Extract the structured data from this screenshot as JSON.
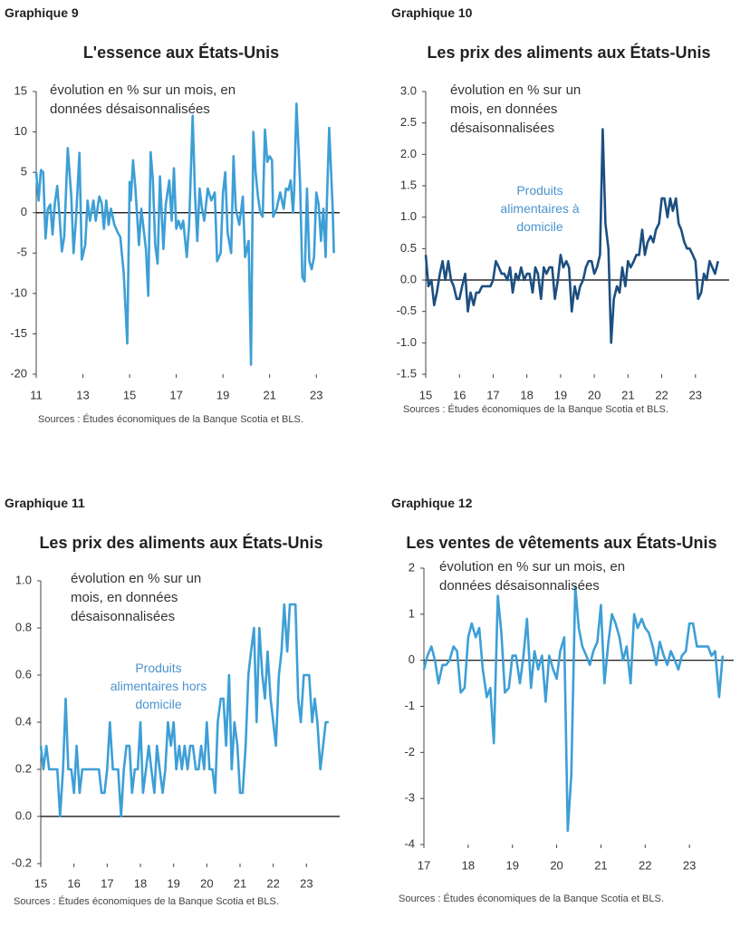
{
  "chart_data": [
    {
      "type": "line",
      "label": "Graphique 9",
      "title": "L'essence aux États-Unis",
      "annotation": "évolution en % sur un mois, en données désaisonnalisées",
      "source": "Sources : Études économiques de la Banque Scotia et BLS.",
      "x": [
        2011.0,
        2011.1,
        2011.2,
        2011.3,
        2011.4,
        2011.5,
        2011.6,
        2011.7,
        2011.8,
        2011.9,
        2012.0,
        2012.1,
        2012.2,
        2012.35,
        2012.5,
        2012.6,
        2012.7,
        2012.85,
        2012.95,
        2013.1,
        2013.2,
        2013.3,
        2013.45,
        2013.55,
        2013.7,
        2013.8,
        2013.9,
        2014.0,
        2014.1,
        2014.2,
        2014.35,
        2014.5,
        2014.6,
        2014.75,
        2014.9,
        2015.0,
        2015.05,
        2015.15,
        2015.25,
        2015.4,
        2015.5,
        2015.6,
        2015.7,
        2015.8,
        2015.9,
        2016.0,
        2016.1,
        2016.2,
        2016.3,
        2016.45,
        2016.55,
        2016.7,
        2016.8,
        2016.9,
        2017.0,
        2017.1,
        2017.2,
        2017.3,
        2017.45,
        2017.55,
        2017.7,
        2017.8,
        2017.9,
        2018.0,
        2018.1,
        2018.2,
        2018.35,
        2018.5,
        2018.65,
        2018.75,
        2018.9,
        2019.0,
        2019.1,
        2019.2,
        2019.35,
        2019.45,
        2019.55,
        2019.7,
        2019.85,
        2019.95,
        2020.1,
        2020.2,
        2020.3,
        2020.4,
        2020.5,
        2020.6,
        2020.7,
        2020.8,
        2020.9,
        2021.0,
        2021.1,
        2021.15,
        2021.3,
        2021.45,
        2021.6,
        2021.7,
        2021.8,
        2021.9,
        2022.0,
        2022.05,
        2022.15,
        2022.3,
        2022.4,
        2022.5,
        2022.6,
        2022.7,
        2022.8,
        2022.9,
        2023.0,
        2023.1,
        2023.2,
        2023.3,
        2023.4,
        2023.45,
        2023.55,
        2023.7,
        2023.75
      ],
      "series": [
        {
          "color": "#3d9fd6",
          "values": [
            5,
            1.5,
            5.3,
            5,
            -3.2,
            0.5,
            1,
            -2.7,
            1.2,
            3.3,
            -0.5,
            -4.8,
            -3,
            8,
            2,
            -5,
            -1,
            7.4,
            -5.8,
            -4,
            1.5,
            -1,
            1.5,
            -1,
            2,
            1.2,
            -2,
            1.5,
            -1.5,
            0.5,
            -1.5,
            -2.5,
            -3,
            -7.5,
            -16.2,
            3.8,
            1.5,
            6.5,
            3,
            -4,
            0.5,
            -2,
            -4.5,
            -10.3,
            7.5,
            4,
            -4,
            -6.3,
            4.5,
            -4.5,
            1,
            4,
            -1,
            5.5,
            -2,
            -1,
            -2,
            -1,
            -5.5,
            -1.5,
            12,
            2.5,
            -3.5,
            3,
            0.5,
            -1,
            3,
            1.5,
            2.5,
            -6,
            -5,
            2.5,
            5,
            -2.5,
            -5,
            7,
            0.5,
            -1.5,
            2,
            -5.5,
            -3.5,
            -18.8,
            10,
            5,
            2,
            0,
            -0.5,
            10.3,
            6.3,
            7,
            6.5,
            -0.5,
            0.5,
            2.5,
            0.5,
            3,
            2.8,
            4,
            0,
            2.5,
            13.5,
            4,
            -8,
            -8.5,
            3,
            -6,
            -7,
            -5.5,
            2.5,
            1,
            -3.5,
            0.5,
            -5.5,
            1,
            10.5,
            0.5,
            -5
          ]
        }
      ],
      "xlim": [
        2011,
        2024
      ],
      "xticks": [
        {
          "value": 2011,
          "label": "11"
        },
        {
          "value": 2013,
          "label": "13"
        },
        {
          "value": 2015,
          "label": "15"
        },
        {
          "value": 2017,
          "label": "17"
        },
        {
          "value": 2019,
          "label": "19"
        },
        {
          "value": 2021,
          "label": "21"
        },
        {
          "value": 2023,
          "label": "23"
        }
      ],
      "ylim": [
        -20,
        15
      ],
      "yticks": [
        -20,
        -15,
        -10,
        -5,
        0,
        5,
        10,
        15
      ],
      "grid": false
    },
    {
      "type": "line",
      "label": "Graphique 10",
      "title": "Les prix des aliments aux États-Unis",
      "annotation": "évolution en % sur un mois, en données désaisonnalisées",
      "source": "Sources : Études économiques de la Banque Scotia et BLS.",
      "x": [
        2015.0,
        2015.08,
        2015.17,
        2015.25,
        2015.33,
        2015.42,
        2015.5,
        2015.58,
        2015.67,
        2015.75,
        2015.83,
        2015.92,
        2016.0,
        2016.08,
        2016.17,
        2016.25,
        2016.33,
        2016.42,
        2016.5,
        2016.58,
        2016.67,
        2016.75,
        2016.83,
        2016.92,
        2017.0,
        2017.08,
        2017.17,
        2017.25,
        2017.33,
        2017.42,
        2017.5,
        2017.58,
        2017.67,
        2017.75,
        2017.83,
        2017.92,
        2018.0,
        2018.08,
        2018.17,
        2018.25,
        2018.33,
        2018.42,
        2018.5,
        2018.58,
        2018.67,
        2018.75,
        2018.83,
        2018.92,
        2019.0,
        2019.08,
        2019.17,
        2019.25,
        2019.33,
        2019.42,
        2019.5,
        2019.58,
        2019.67,
        2019.75,
        2019.83,
        2019.92,
        2020.0,
        2020.08,
        2020.17,
        2020.25,
        2020.33,
        2020.42,
        2020.5,
        2020.58,
        2020.67,
        2020.75,
        2020.83,
        2020.92,
        2021.0,
        2021.08,
        2021.17,
        2021.25,
        2021.33,
        2021.42,
        2021.5,
        2021.58,
        2021.67,
        2021.75,
        2021.83,
        2021.92,
        2022.0,
        2022.08,
        2022.17,
        2022.25,
        2022.33,
        2022.42,
        2022.5,
        2022.58,
        2022.67,
        2022.75,
        2022.83,
        2022.92,
        2023.0,
        2023.08,
        2023.17,
        2023.25,
        2023.33,
        2023.42,
        2023.5,
        2023.58,
        2023.67
      ],
      "series": [
        {
          "name": "Produits alimentaires à domicile",
          "color": "#1c4f80",
          "values": [
            0.4,
            -0.1,
            0,
            -0.4,
            -0.2,
            0.1,
            0.3,
            0,
            0.3,
            0,
            -0.1,
            -0.3,
            -0.3,
            -0.1,
            0.1,
            -0.5,
            -0.2,
            -0.4,
            -0.2,
            -0.2,
            -0.1,
            -0.1,
            -0.1,
            -0.1,
            0,
            0.3,
            0.2,
            0.1,
            0.1,
            0,
            0.2,
            -0.2,
            0.1,
            0,
            0.2,
            0,
            0.1,
            0.1,
            -0.2,
            0.2,
            0.1,
            -0.3,
            0.2,
            0.1,
            0.2,
            0.2,
            -0.3,
            0,
            0.4,
            0.2,
            0.3,
            0.2,
            -0.5,
            -0.1,
            -0.3,
            -0.1,
            0,
            0.2,
            0.3,
            0.3,
            0.1,
            0.2,
            0.4,
            2.4,
            0.9,
            0.5,
            -1,
            -0.3,
            -0.1,
            -0.2,
            0.2,
            -0.1,
            0.3,
            0.2,
            0.3,
            0.4,
            0.4,
            0.8,
            0.4,
            0.6,
            0.7,
            0.6,
            0.8,
            0.9,
            1.3,
            1.3,
            1,
            1.3,
            1.1,
            1.3,
            0.9,
            0.8,
            0.6,
            0.5,
            0.5,
            0.4,
            0.3,
            -0.3,
            -0.2,
            0.1,
            0,
            0.3,
            0.2,
            0.1,
            0.3
          ]
        }
      ],
      "xlim": [
        2015,
        2024
      ],
      "xticks": [
        {
          "value": 2015,
          "label": "15"
        },
        {
          "value": 2016,
          "label": "16"
        },
        {
          "value": 2017,
          "label": "17"
        },
        {
          "value": 2018,
          "label": "18"
        },
        {
          "value": 2019,
          "label": "19"
        },
        {
          "value": 2020,
          "label": "20"
        },
        {
          "value": 2021,
          "label": "21"
        },
        {
          "value": 2022,
          "label": "22"
        },
        {
          "value": 2023,
          "label": "23"
        }
      ],
      "ylim": [
        -1.5,
        3
      ],
      "yticks": [
        -1.5,
        {
          "value": -1,
          "label": "-1.0"
        },
        -0.5,
        {
          "value": 0,
          "label": "0.0"
        },
        0.5,
        {
          "value": 1,
          "label": "1.0"
        },
        1.5,
        {
          "value": 2,
          "label": "2.0"
        },
        2.5,
        {
          "value": 3,
          "label": "3.0"
        }
      ],
      "grid": false
    },
    {
      "type": "line",
      "label": "Graphique 11",
      "title": "Les prix des aliments aux États-Unis",
      "annotation": "évolution en % sur un mois, en données désaisonnalisées",
      "source": "Sources : Études économiques de la Banque Scotia et BLS.",
      "x": [
        2015.0,
        2015.08,
        2015.17,
        2015.25,
        2015.33,
        2015.42,
        2015.5,
        2015.58,
        2015.67,
        2015.75,
        2015.83,
        2015.92,
        2016.0,
        2016.08,
        2016.17,
        2016.25,
        2016.33,
        2016.42,
        2016.5,
        2016.58,
        2016.67,
        2016.75,
        2016.83,
        2016.92,
        2017.0,
        2017.08,
        2017.17,
        2017.25,
        2017.33,
        2017.42,
        2017.5,
        2017.58,
        2017.67,
        2017.75,
        2017.83,
        2017.92,
        2018.0,
        2018.08,
        2018.17,
        2018.25,
        2018.33,
        2018.42,
        2018.5,
        2018.58,
        2018.67,
        2018.75,
        2018.83,
        2018.92,
        2019.0,
        2019.08,
        2019.17,
        2019.25,
        2019.33,
        2019.42,
        2019.5,
        2019.58,
        2019.67,
        2019.75,
        2019.83,
        2019.92,
        2020.0,
        2020.08,
        2020.17,
        2020.25,
        2020.33,
        2020.42,
        2020.5,
        2020.58,
        2020.67,
        2020.75,
        2020.83,
        2020.92,
        2021.0,
        2021.08,
        2021.17,
        2021.25,
        2021.33,
        2021.42,
        2021.5,
        2021.58,
        2021.67,
        2021.75,
        2021.83,
        2021.92,
        2022.0,
        2022.08,
        2022.17,
        2022.25,
        2022.33,
        2022.42,
        2022.5,
        2022.58,
        2022.67,
        2022.75,
        2022.83,
        2022.92,
        2023.0,
        2023.08,
        2023.17,
        2023.25,
        2023.33,
        2023.42,
        2023.5,
        2023.58,
        2023.67
      ],
      "series": [
        {
          "name": "Produits alimentaires hors domicile",
          "color": "#3d9fd6",
          "values": [
            0.3,
            0.2,
            0.3,
            0.2,
            0.2,
            0.2,
            0.2,
            0,
            0.2,
            0.5,
            0.2,
            0.2,
            0.1,
            0.3,
            0.1,
            0.2,
            0.2,
            0.2,
            0.2,
            0.2,
            0.2,
            0.2,
            0.1,
            0.1,
            0.2,
            0.4,
            0.2,
            0.2,
            0.2,
            0,
            0.2,
            0.3,
            0.3,
            0.1,
            0.2,
            0.2,
            0.4,
            0.1,
            0.2,
            0.3,
            0.2,
            0.1,
            0.3,
            0.2,
            0.1,
            0.2,
            0.4,
            0.3,
            0.4,
            0.2,
            0.3,
            0.2,
            0.3,
            0.2,
            0.3,
            0.3,
            0.2,
            0.2,
            0.3,
            0.2,
            0.4,
            0.2,
            0.2,
            0.1,
            0.4,
            0.5,
            0.5,
            0.3,
            0.6,
            0.2,
            0.4,
            0.3,
            0.1,
            0.1,
            0.3,
            0.6,
            0.7,
            0.8,
            0.4,
            0.8,
            0.6,
            0.5,
            0.7,
            0.5,
            0.4,
            0.3,
            0.6,
            0.7,
            0.9,
            0.7,
            0.9,
            0.9,
            0.9,
            0.5,
            0.4,
            0.6,
            0.6,
            0.6,
            0.4,
            0.5,
            0.4,
            0.2,
            0.3,
            0.4,
            0.4
          ]
        }
      ],
      "xlim": [
        2015,
        2024
      ],
      "xticks": [
        {
          "value": 2015,
          "label": "15"
        },
        {
          "value": 2016,
          "label": "16"
        },
        {
          "value": 2017,
          "label": "17"
        },
        {
          "value": 2018,
          "label": "18"
        },
        {
          "value": 2019,
          "label": "19"
        },
        {
          "value": 2020,
          "label": "20"
        },
        {
          "value": 2021,
          "label": "21"
        },
        {
          "value": 2022,
          "label": "22"
        },
        {
          "value": 2023,
          "label": "23"
        }
      ],
      "ylim": [
        -0.2,
        1
      ],
      "yticks": [
        -0.2,
        {
          "value": 0,
          "label": "0.0"
        },
        0.2,
        0.4,
        0.6,
        0.8,
        {
          "value": 1,
          "label": "1.0"
        }
      ],
      "grid": false
    },
    {
      "type": "line",
      "label": "Graphique 12",
      "title": "Les ventes de vêtements aux États-Unis",
      "annotation": "évolution en % sur un mois, en données désaisonnalisées",
      "source": "Sources : Études économiques de la Banque Scotia et BLS.",
      "x": [
        2017.0,
        2017.08,
        2017.17,
        2017.25,
        2017.33,
        2017.42,
        2017.5,
        2017.58,
        2017.67,
        2017.75,
        2017.83,
        2017.92,
        2018.0,
        2018.08,
        2018.17,
        2018.25,
        2018.33,
        2018.42,
        2018.5,
        2018.58,
        2018.67,
        2018.75,
        2018.83,
        2018.92,
        2019.0,
        2019.08,
        2019.17,
        2019.25,
        2019.33,
        2019.42,
        2019.5,
        2019.58,
        2019.67,
        2019.75,
        2019.83,
        2019.92,
        2020.0,
        2020.08,
        2020.17,
        2020.25,
        2020.33,
        2020.42,
        2020.5,
        2020.58,
        2020.67,
        2020.75,
        2020.83,
        2020.92,
        2021.0,
        2021.08,
        2021.17,
        2021.25,
        2021.33,
        2021.42,
        2021.5,
        2021.58,
        2021.67,
        2021.75,
        2021.83,
        2021.92,
        2022.0,
        2022.08,
        2022.17,
        2022.25,
        2022.33,
        2022.42,
        2022.5,
        2022.58,
        2022.67,
        2022.75,
        2022.83,
        2022.92,
        2023.0,
        2023.08,
        2023.17,
        2023.25,
        2023.33,
        2023.42,
        2023.5,
        2023.58,
        2023.67,
        2023.75
      ],
      "series": [
        {
          "color": "#3d9fd6",
          "values": [
            -0.2,
            0.1,
            0.3,
            0,
            -0.5,
            -0.1,
            -0.1,
            0,
            0.3,
            0.2,
            -0.7,
            -0.6,
            0.5,
            0.8,
            0.5,
            0.7,
            -0.2,
            -0.8,
            -0.6,
            -1.8,
            1.4,
            0.6,
            -0.7,
            -0.6,
            0.1,
            0.1,
            -0.5,
            0.1,
            0.9,
            -0.6,
            0.2,
            -0.2,
            0.1,
            -0.9,
            0.1,
            -0.2,
            -0.4,
            0.2,
            0.5,
            -3.7,
            -2.5,
            1.6,
            0.7,
            0.3,
            0.1,
            -0.1,
            0.2,
            0.4,
            1.2,
            -0.5,
            0.4,
            1,
            0.8,
            0.5,
            0,
            0.3,
            -0.5,
            1,
            0.7,
            0.9,
            0.7,
            0.6,
            0.3,
            -0.1,
            0.4,
            0.1,
            -0.1,
            0.2,
            0,
            -0.2,
            0.1,
            0.2,
            0.8,
            0.8,
            0.3,
            0.3,
            0.3,
            0.3,
            0.1,
            0.2,
            -0.8,
            0.1
          ]
        }
      ],
      "xlim": [
        2017,
        2024
      ],
      "xticks": [
        {
          "value": 2017,
          "label": "17"
        },
        {
          "value": 2018,
          "label": "18"
        },
        {
          "value": 2019,
          "label": "19"
        },
        {
          "value": 2020,
          "label": "20"
        },
        {
          "value": 2021,
          "label": "21"
        },
        {
          "value": 2022,
          "label": "22"
        },
        {
          "value": 2023,
          "label": "23"
        }
      ],
      "ylim": [
        -4,
        2
      ],
      "yticks": [
        -4,
        -3,
        -2,
        -1,
        0,
        1,
        2
      ],
      "grid": false
    }
  ]
}
